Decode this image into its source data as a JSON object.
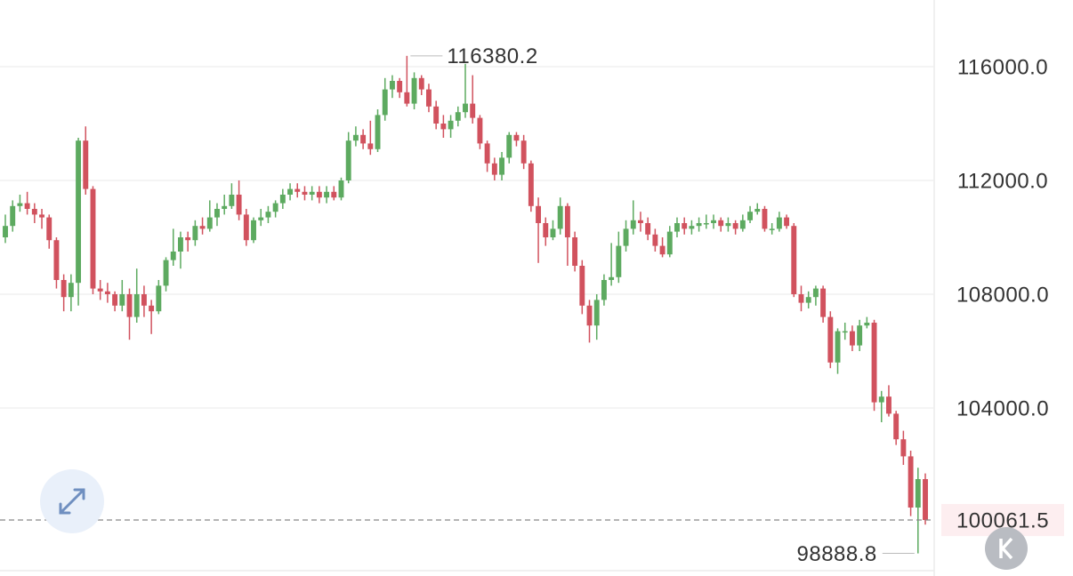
{
  "chart_data": {
    "type": "candlestick",
    "up_color": "#5daa60",
    "down_color": "#d1525e",
    "grid": true,
    "ylim": [
      98093.75,
      118343.75
    ],
    "yticks": [
      {
        "value": 104000,
        "label": "104000.0"
      },
      {
        "value": 108000,
        "label": "108000.0"
      },
      {
        "value": 112000,
        "label": "112000.0"
      },
      {
        "value": 116000,
        "label": "116000.0"
      }
    ],
    "candles": [
      [
        110000,
        110800,
        109800,
        110400
      ],
      [
        110400,
        111300,
        110200,
        111100
      ],
      [
        111100,
        111500,
        110900,
        111200
      ],
      [
        111200,
        111600,
        110800,
        111000
      ],
      [
        111000,
        111200,
        110500,
        110800
      ],
      [
        110800,
        111000,
        110300,
        110700
      ],
      [
        110700,
        110800,
        109600,
        109900
      ],
      [
        109900,
        110000,
        108200,
        108500
      ],
      [
        108500,
        108700,
        107400,
        107900
      ],
      [
        107900,
        108700,
        107400,
        108400
      ],
      [
        108400,
        113500,
        107600,
        113400
      ],
      [
        113400,
        113900,
        111500,
        111700
      ],
      [
        111700,
        111800,
        108000,
        108200
      ],
      [
        108200,
        108500,
        107800,
        108100
      ],
      [
        108100,
        108400,
        107700,
        108000
      ],
      [
        108000,
        108100,
        107400,
        107600
      ],
      [
        107600,
        108500,
        107400,
        108000
      ],
      [
        108000,
        108200,
        106400,
        107200
      ],
      [
        107200,
        108900,
        107000,
        108000
      ],
      [
        108000,
        108300,
        107200,
        107600
      ],
      [
        107600,
        107800,
        106600,
        107400
      ],
      [
        107400,
        108500,
        107300,
        108300
      ],
      [
        108300,
        109300,
        108100,
        109200
      ],
      [
        109200,
        110300,
        109000,
        109500
      ],
      [
        109500,
        110200,
        108900,
        110000
      ],
      [
        110000,
        110200,
        109500,
        109900
      ],
      [
        109900,
        110600,
        109700,
        110400
      ],
      [
        110400,
        110700,
        110100,
        110300
      ],
      [
        110300,
        111300,
        110200,
        110700
      ],
      [
        110700,
        111200,
        110400,
        111000
      ],
      [
        111000,
        111500,
        110800,
        111100
      ],
      [
        111100,
        111900,
        111000,
        111500
      ],
      [
        111500,
        112000,
        110600,
        110800
      ],
      [
        110800,
        111000,
        109700,
        109900
      ],
      [
        109900,
        110700,
        109800,
        110600
      ],
      [
        110600,
        111000,
        110400,
        110700
      ],
      [
        110700,
        111100,
        110500,
        110900
      ],
      [
        110900,
        111300,
        110700,
        111200
      ],
      [
        111200,
        111700,
        111000,
        111500
      ],
      [
        111500,
        111900,
        111300,
        111700
      ],
      [
        111700,
        111900,
        111400,
        111600
      ],
      [
        111600,
        111800,
        111300,
        111500
      ],
      [
        111500,
        111800,
        111300,
        111600
      ],
      [
        111600,
        111800,
        111200,
        111400
      ],
      [
        111400,
        111800,
        111200,
        111600
      ],
      [
        111600,
        111800,
        111300,
        111400
      ],
      [
        111400,
        112100,
        111300,
        112000
      ],
      [
        112000,
        113700,
        111900,
        113400
      ],
      [
        113400,
        113900,
        113200,
        113600
      ],
      [
        113600,
        113800,
        113100,
        113300
      ],
      [
        113300,
        114100,
        112900,
        113100
      ],
      [
        113100,
        114500,
        113000,
        114300
      ],
      [
        114300,
        115600,
        114100,
        115200
      ],
      [
        115200,
        115700,
        114900,
        115500
      ],
      [
        115500,
        115600,
        114900,
        115100
      ],
      [
        115100,
        116380.2,
        114600,
        114700
      ],
      [
        114700,
        115800,
        114500,
        115600
      ],
      [
        115600,
        115700,
        115000,
        115200
      ],
      [
        115200,
        115400,
        114400,
        114600
      ],
      [
        114600,
        114800,
        113800,
        114000
      ],
      [
        114000,
        114300,
        113500,
        113800
      ],
      [
        113800,
        114300,
        113500,
        114100
      ],
      [
        114100,
        114600,
        113900,
        114400
      ],
      [
        114400,
        116100,
        114200,
        114700
      ],
      [
        114700,
        115700,
        114000,
        114200
      ],
      [
        114200,
        114300,
        113100,
        113300
      ],
      [
        113300,
        113400,
        112300,
        112600
      ],
      [
        112600,
        112800,
        112000,
        112200
      ],
      [
        112200,
        113000,
        112000,
        112800
      ],
      [
        112800,
        113700,
        112600,
        113600
      ],
      [
        113600,
        113700,
        113200,
        113400
      ],
      [
        113400,
        113600,
        112400,
        112600
      ],
      [
        112600,
        112700,
        110900,
        111100
      ],
      [
        111100,
        111400,
        109100,
        110500
      ],
      [
        110500,
        110700,
        109700,
        110000
      ],
      [
        110000,
        110600,
        109900,
        110300
      ],
      [
        110300,
        111400,
        110100,
        111100
      ],
      [
        111100,
        111200,
        109000,
        110000
      ],
      [
        110000,
        110200,
        108800,
        109000
      ],
      [
        109000,
        109200,
        107300,
        107600
      ],
      [
        107600,
        107800,
        106300,
        106900
      ],
      [
        106900,
        108000,
        106400,
        107800
      ],
      [
        107800,
        108700,
        107600,
        108500
      ],
      [
        108500,
        109800,
        108300,
        108600
      ],
      [
        108600,
        110200,
        108400,
        109700
      ],
      [
        109700,
        110600,
        109500,
        110300
      ],
      [
        110300,
        111300,
        110100,
        110600
      ],
      [
        110600,
        110900,
        110200,
        110500
      ],
      [
        110500,
        110700,
        109900,
        110100
      ],
      [
        110100,
        110300,
        109500,
        109700
      ],
      [
        109700,
        110000,
        109300,
        109400
      ],
      [
        109400,
        110400,
        109300,
        110200
      ],
      [
        110200,
        110700,
        110000,
        110500
      ],
      [
        110500,
        110700,
        110100,
        110300
      ],
      [
        110300,
        110600,
        110100,
        110400
      ],
      [
        110400,
        110700,
        110200,
        110500
      ],
      [
        110500,
        110800,
        110300,
        110500
      ],
      [
        110500,
        110800,
        110300,
        110600
      ],
      [
        110600,
        110700,
        110200,
        110400
      ],
      [
        110400,
        110700,
        110200,
        110500
      ],
      [
        110500,
        110600,
        110100,
        110300
      ],
      [
        110300,
        110800,
        110200,
        110600
      ],
      [
        110600,
        111100,
        110500,
        110900
      ],
      [
        110900,
        111200,
        110800,
        111000
      ],
      [
        111000,
        111100,
        110200,
        110300
      ],
      [
        110300,
        110500,
        110100,
        110300
      ],
      [
        110300,
        110900,
        110200,
        110700
      ],
      [
        110700,
        110800,
        110300,
        110400
      ],
      [
        110400,
        110500,
        107900,
        108000
      ],
      [
        108000,
        108300,
        107400,
        107700
      ],
      [
        107700,
        108100,
        107500,
        107900
      ],
      [
        107900,
        108300,
        107600,
        108200
      ],
      [
        108200,
        108300,
        107000,
        107200
      ],
      [
        107200,
        107400,
        105400,
        105600
      ],
      [
        105600,
        106800,
        105200,
        106700
      ],
      [
        106700,
        107000,
        106400,
        106700
      ],
      [
        106700,
        106900,
        106000,
        106200
      ],
      [
        106200,
        107100,
        106000,
        106900
      ],
      [
        106900,
        107200,
        106800,
        107000
      ],
      [
        107000,
        107100,
        103900,
        104200
      ],
      [
        104200,
        104600,
        103500,
        104400
      ],
      [
        104400,
        104800,
        103700,
        103800
      ],
      [
        103800,
        103900,
        102700,
        102900
      ],
      [
        102900,
        103200,
        102000,
        102300
      ],
      [
        102300,
        102500,
        100200,
        100500
      ],
      [
        100500,
        101900,
        98888.8,
        101500
      ],
      [
        101500,
        101700,
        99900,
        100061.5
      ]
    ]
  }
}
